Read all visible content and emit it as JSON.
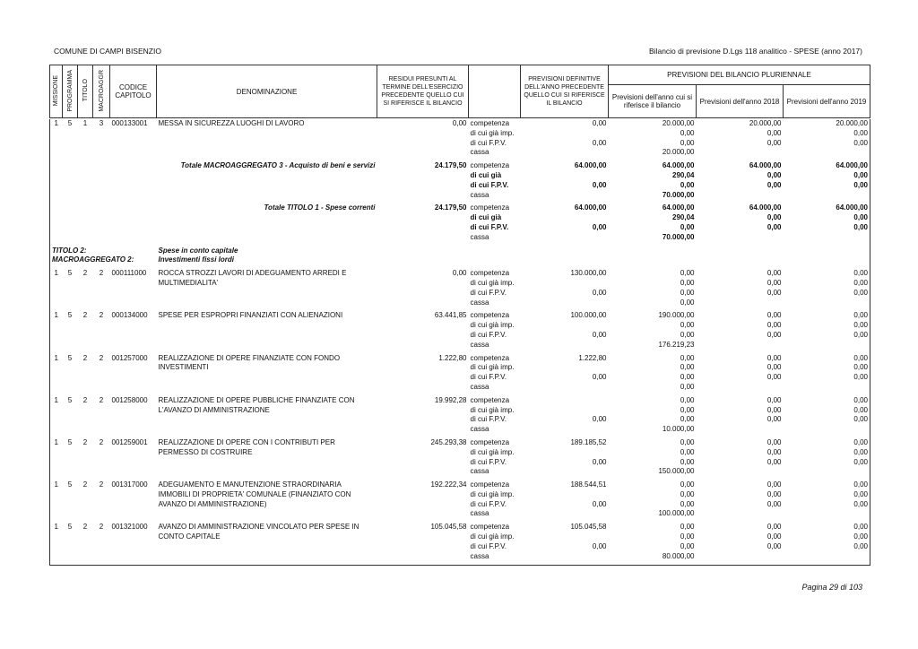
{
  "header": {
    "left": "COMUNE DI CAMPI BISENZIO",
    "right": "Bilancio di previsione D.Lgs 118 analitico - SPESE (anno 2017)"
  },
  "columns": {
    "missione": "MISSIONE",
    "programma": "PROGRAMMA",
    "titolo": "TITOLO",
    "macroaggr": "MACROAGGR",
    "codice": "CODICE CAPITOLO",
    "denominazione": "DENOMINAZIONE",
    "residui": "RESIDUI PRESUNTI AL TERMINE DELL'ESERCIZIO PRECEDENTE QUELLO CUI SI RIFERISCE IL BILANCIO",
    "previsioni_definitive": "PREVISIONI DEFINITIVE DELL'ANNO PRECEDENTE QUELLO CUI SI RIFERISCE IL BILANCIO",
    "pluriennale": "PREVISIONI DEL BILANCIO PLURIENNALE",
    "anno_corrente": "Previsioni dell'anno cui si riferisce il bilancio",
    "anno_2018": "Previsioni dell'anno 2018",
    "anno_2019": "Previsioni dell'anno 2019"
  },
  "blocks": [
    {
      "codes": [
        "1",
        "5",
        "1",
        "3"
      ],
      "capitolo": "000133001",
      "denominazione": "MESSA IN SICUREZZA LUOGHI DI LAVORO",
      "residui": "0,00",
      "rows": [
        [
          "competenza",
          "0,00",
          "20.000,00",
          "20.000,00",
          "20.000,00"
        ],
        [
          "di cui già imp.",
          null,
          "0,00",
          "0,00",
          "0,00"
        ],
        [
          "di cui F.P.V.",
          "0,00",
          "0,00",
          "0,00",
          "0,00"
        ],
        [
          "cassa",
          null,
          "20.000,00",
          null,
          null
        ]
      ]
    },
    {
      "total_label": "Totale MACROAGGREGATO 3 - Acquisto di beni e servizi",
      "residui": "24.179,50",
      "rows": [
        [
          "competenza",
          "64.000,00",
          "64.000,00",
          "64.000,00",
          "64.000,00"
        ],
        [
          "di cui già",
          null,
          "290,04",
          "0,00",
          "0,00"
        ],
        [
          "di cui F.P.V.",
          "0,00",
          "0,00",
          "0,00",
          "0,00"
        ],
        [
          "cassa",
          null,
          "70.000,00",
          null,
          null
        ]
      ]
    },
    {
      "total_label": "Totale TITOLO 1 - Spese correnti",
      "residui": "24.179,50",
      "rows": [
        [
          "competenza",
          "64.000,00",
          "64.000,00",
          "64.000,00",
          "64.000,00"
        ],
        [
          "di cui già",
          null,
          "290,04",
          "0,00",
          "0,00"
        ],
        [
          "di cui F.P.V.",
          "0,00",
          "0,00",
          "0,00",
          "0,00"
        ],
        [
          "cassa",
          null,
          "70.000,00",
          null,
          null
        ]
      ]
    },
    {
      "titolo": "TITOLO 2:",
      "titolo_desc": "Spese in conto capitale",
      "macro": "MACROAGGREGATO 2:",
      "macro_desc": "Investimenti fissi lordi"
    },
    {
      "codes": [
        "1",
        "5",
        "2",
        "2"
      ],
      "capitolo": "000111000",
      "denominazione": "ROCCA STROZZI LAVORI DI ADEGUAMENTO ARREDI E MULTIMEDIALITA'",
      "residui": "0,00",
      "rows": [
        [
          "competenza",
          "130.000,00",
          "0,00",
          "0,00",
          "0,00"
        ],
        [
          "di cui già imp.",
          null,
          "0,00",
          "0,00",
          "0,00"
        ],
        [
          "di cui F.P.V.",
          "0,00",
          "0,00",
          "0,00",
          "0,00"
        ],
        [
          "cassa",
          null,
          "0,00",
          null,
          null
        ]
      ]
    },
    {
      "codes": [
        "1",
        "5",
        "2",
        "2"
      ],
      "capitolo": "000134000",
      "denominazione": "SPESE PER ESPROPRI FINANZIATI CON ALIENAZIONI",
      "residui": "63.441,85",
      "rows": [
        [
          "competenza",
          "100.000,00",
          "190.000,00",
          "0,00",
          "0,00"
        ],
        [
          "di cui già imp.",
          null,
          "0,00",
          "0,00",
          "0,00"
        ],
        [
          "di cui F.P.V.",
          "0,00",
          "0,00",
          "0,00",
          "0,00"
        ],
        [
          "cassa",
          null,
          "176.219,23",
          null,
          null
        ]
      ]
    },
    {
      "codes": [
        "1",
        "5",
        "2",
        "2"
      ],
      "capitolo": "001257000",
      "denominazione": "REALIZZAZIONE DI OPERE FINANZIATE CON FONDO INVESTIMENTI",
      "residui": "1.222,80",
      "rows": [
        [
          "competenza",
          "1.222,80",
          "0,00",
          "0,00",
          "0,00"
        ],
        [
          "di cui già imp.",
          null,
          "0,00",
          "0,00",
          "0,00"
        ],
        [
          "di cui F.P.V.",
          "0,00",
          "0,00",
          "0,00",
          "0,00"
        ],
        [
          "cassa",
          null,
          "0,00",
          null,
          null
        ]
      ]
    },
    {
      "codes": [
        "1",
        "5",
        "2",
        "2"
      ],
      "capitolo": "001258000",
      "denominazione": "REALIZZAZIONE DI OPERE PUBBLICHE FINANZIATE CON L'AVANZO DI AMMINISTRAZIONE",
      "residui": "19.992,28",
      "rows": [
        [
          "competenza",
          null,
          "0,00",
          "0,00",
          "0,00"
        ],
        [
          "di cui già imp.",
          null,
          "0,00",
          "0,00",
          "0,00"
        ],
        [
          "di cui F.P.V.",
          "0,00",
          "0,00",
          "0,00",
          "0,00"
        ],
        [
          "cassa",
          null,
          "10.000,00",
          null,
          null
        ]
      ]
    },
    {
      "codes": [
        "1",
        "5",
        "2",
        "2"
      ],
      "capitolo": "001259001",
      "denominazione": "REALIZZAZIONE DI OPERE CON I CONTRIBUTI PER PERMESSO DI COSTRUIRE",
      "residui": "245.293,38",
      "rows": [
        [
          "competenza",
          "189.185,52",
          "0,00",
          "0,00",
          "0,00"
        ],
        [
          "di cui già imp.",
          null,
          "0,00",
          "0,00",
          "0,00"
        ],
        [
          "di cui F.P.V.",
          "0,00",
          "0,00",
          "0,00",
          "0,00"
        ],
        [
          "cassa",
          null,
          "150.000,00",
          null,
          null
        ]
      ]
    },
    {
      "codes": [
        "1",
        "5",
        "2",
        "2"
      ],
      "capitolo": "001317000",
      "denominazione": "ADEGUAMENTO E MANUTENZIONE STRAORDINARIA IMMOBILI DI PROPRIETA' COMUNALE (FINANZIATO CON AVANZO DI AMMINISTRAZIONE)",
      "residui": "192.222,34",
      "rows": [
        [
          "competenza",
          "188.544,51",
          "0,00",
          "0,00",
          "0,00"
        ],
        [
          "di cui già imp.",
          null,
          "0,00",
          "0,00",
          "0,00"
        ],
        [
          "di cui F.P.V.",
          "0,00",
          "0,00",
          "0,00",
          "0,00"
        ],
        [
          "cassa",
          null,
          "100.000,00",
          null,
          null
        ]
      ]
    },
    {
      "codes": [
        "1",
        "5",
        "2",
        "2"
      ],
      "capitolo": "001321000",
      "denominazione": "AVANZO DI AMMINISTRAZIONE VINCOLATO PER SPESE IN CONTO CAPITALE",
      "residui": "105.045,58",
      "rows": [
        [
          "competenza",
          "105.045,58",
          "0,00",
          "0,00",
          "0,00"
        ],
        [
          "di cui già imp.",
          null,
          "0,00",
          "0,00",
          "0,00"
        ],
        [
          "di cui F.P.V.",
          "0,00",
          "0,00",
          "0,00",
          "0,00"
        ],
        [
          "cassa",
          null,
          "80.000,00",
          null,
          null
        ]
      ]
    }
  ],
  "footer": "Pagina 29 di 103"
}
